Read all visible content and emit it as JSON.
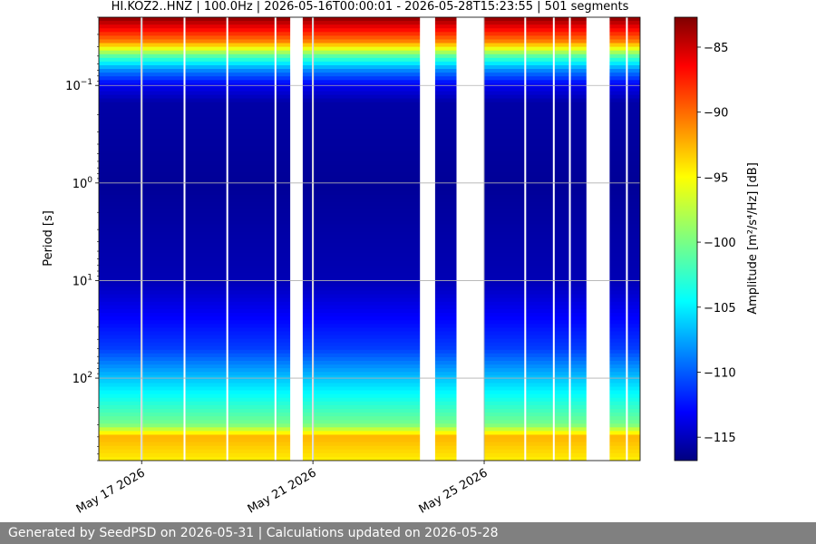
{
  "chart_data": {
    "type": "heatmap",
    "title": "HI.KOZ2..HNZ | 100.0Hz | 2026-05-16T00:00:01 - 2026-05-28T15:23:55 | 501 segments",
    "ylabel": "Period [s]",
    "colorbar_label": "Amplitude [m²/s⁴/Hz] [dB]",
    "colormap": "jet",
    "y_scale": "log",
    "y_inverted": true,
    "ylim": [
      0.02,
      700
    ],
    "xlim": [
      "2026-05-16T00:00:00",
      "2026-05-28T15:23:55"
    ],
    "clim": [
      -116.8,
      -82.7
    ],
    "grid": true,
    "x_ticks": [
      {
        "value": "2026-05-17",
        "label": "May 17 2026"
      },
      {
        "value": "2026-05-21",
        "label": "May 21 2026"
      },
      {
        "value": "2026-05-25",
        "label": "May 25 2026"
      }
    ],
    "y_ticks": [
      {
        "value": 0.1,
        "label": "10",
        "exp": "−1"
      },
      {
        "value": 1,
        "label": "10",
        "exp": "0"
      },
      {
        "value": 10,
        "label": "10",
        "exp": "1"
      },
      {
        "value": 100,
        "label": "10",
        "exp": "2"
      }
    ],
    "colorbar_ticks": [
      -85,
      -90,
      -95,
      -100,
      -105,
      -110,
      -115
    ],
    "gaps": [
      {
        "start": "2026-05-20T11:18:00",
        "end": "2026-05-20T18:20:00"
      },
      {
        "start": "2026-05-23T12:00:00",
        "end": "2026-05-23T20:30:00"
      },
      {
        "start": "2026-05-24T08:30:00",
        "end": "2026-05-24T23:50:00"
      },
      {
        "start": "2026-05-27T09:18:00",
        "end": "2026-05-27T22:20:00"
      }
    ],
    "thin_gaps": [
      "2026-05-17T00:00:00",
      "2026-05-18T00:00:00",
      "2026-05-19T00:00:00",
      "2026-05-20T03:00:00",
      "2026-05-21T00:00:00",
      "2026-05-25T23:00:00",
      "2026-05-26T15:00:00",
      "2026-05-27T00:00:00",
      "2026-05-28T08:00:00"
    ],
    "spectral_profile": [
      {
        "period": 0.02,
        "db": -83
      },
      {
        "period": 0.035,
        "db": -91
      },
      {
        "period": 0.05,
        "db": -101
      },
      {
        "period": 0.07,
        "db": -108
      },
      {
        "period": 0.1,
        "db": -113
      },
      {
        "period": 0.15,
        "db": -115.5
      },
      {
        "period": 1,
        "db": -116
      },
      {
        "period": 10,
        "db": -115
      },
      {
        "period": 50,
        "db": -110.5
      },
      {
        "period": 100,
        "db": -106
      },
      {
        "period": 300,
        "db": -100
      },
      {
        "period": 400,
        "db": -93
      },
      {
        "period": 700,
        "db": -95
      }
    ]
  },
  "footer": {
    "text": "Generated by SeedPSD on 2026-05-31 | Calculations updated on 2026-05-28"
  }
}
